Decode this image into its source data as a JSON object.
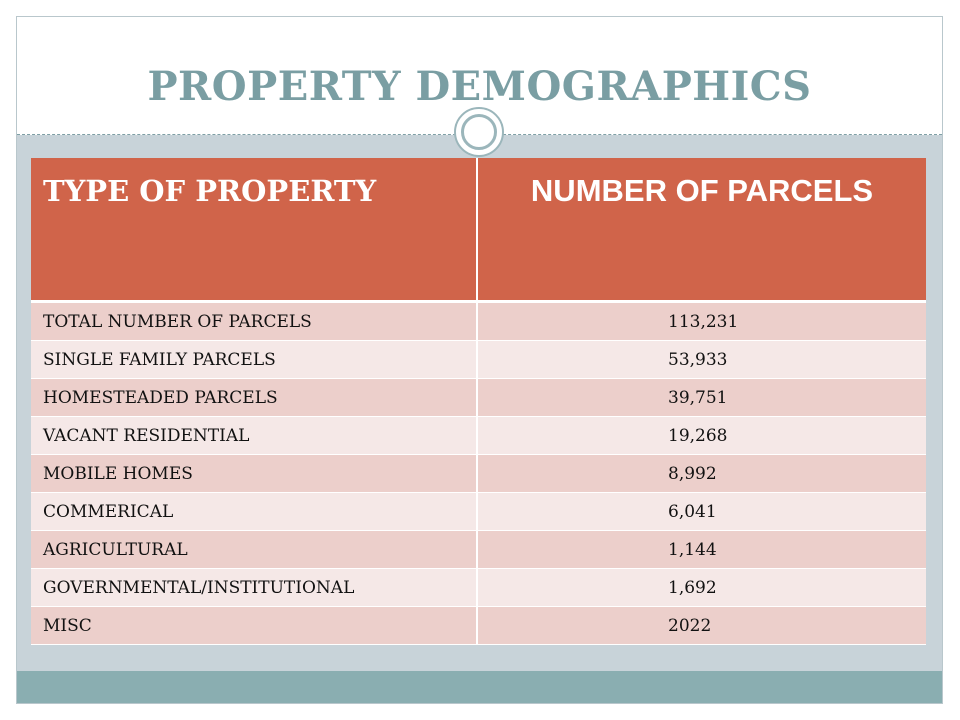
{
  "slide": {
    "title": "PROPERTY DEMOGRAPHICS",
    "colors": {
      "title": "#7a9ea3",
      "header_fill": "#d0644a",
      "row_odd": "#eccfcb",
      "row_even": "#f5e8e7",
      "content_bg": "#c8d3d9",
      "footer_band": "#8aaeb1"
    }
  },
  "table": {
    "headers": [
      "TYPE OF PROPERTY",
      "NUMBER OF PARCELS"
    ],
    "rows": [
      {
        "type": "TOTAL NUMBER OF PARCELS",
        "count": "113,231"
      },
      {
        "type": "SINGLE FAMILY  PARCELS",
        "count": "53,933"
      },
      {
        "type": "HOMESTEADED PARCELS",
        "count": "39,751"
      },
      {
        "type": "VACANT RESIDENTIAL",
        "count": "19,268"
      },
      {
        "type": "MOBILE HOMES",
        "count": "8,992"
      },
      {
        "type": "COMMERICAL",
        "count": "6,041"
      },
      {
        "type": "AGRICULTURAL",
        "count": "1,144"
      },
      {
        "type": "GOVERNMENTAL/INSTITUTIONAL",
        "count": "1,692"
      },
      {
        "type": "MISC",
        "count": "2022"
      }
    ]
  }
}
